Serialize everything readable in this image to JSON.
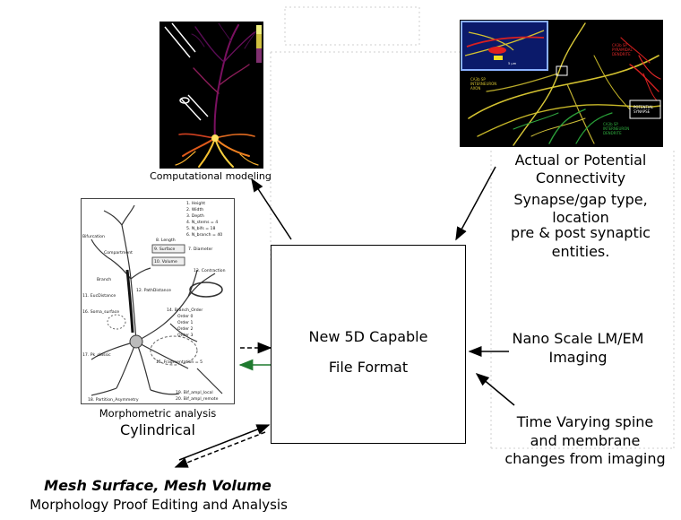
{
  "center_box": {
    "line1": "New 5D Capable",
    "line2": "File Format"
  },
  "comp_caption": "Computational modeling",
  "connectivity": {
    "title_line1": "Actual or Potential",
    "title_line2": "Connectivity",
    "sub_line1": "Synapse/gap type,",
    "sub_line2": "location",
    "sub_line3": "pre & post synaptic",
    "sub_line4": "entities.",
    "img_labels": [
      "CA3b SP",
      "INTERNEURON",
      "AXON",
      "CA3b SP",
      "PYRAMIDAL",
      "DENDRITE",
      "POTENTIAL",
      "SYNAPSE",
      "CA3b SP",
      "INTERNEURON",
      "DENDRITE",
      "5 µm"
    ]
  },
  "nano": {
    "line1": "Nano Scale LM/EM",
    "line2": "Imaging"
  },
  "time_varying": {
    "line1": "Time Varying spine",
    "line2": "and membrane",
    "line3": "changes from imaging"
  },
  "morpho": {
    "caption": "Morphometric analysis",
    "label": "Cylindrical",
    "legend": [
      "1. Height",
      "2. Width",
      "3. Depth",
      "4. N_stems  = 4",
      "5. N_bifs    = 18",
      "6. N_branch = 40"
    ],
    "labels": [
      "Bifurcation",
      "Compartment",
      "Branch",
      "8. Length",
      "9. Surface",
      "7. Diameter",
      "10. Volume",
      "11. EucDistance",
      "12. PathDistance",
      "13. Contraction",
      "16. Soma_surface",
      "14. Branch_Order",
      "Order 0",
      "Order 1",
      "Order 2",
      "Order 3",
      "17. Pk_classic",
      "15. Fragmentation = 5",
      "18. Partition_Asymmetry",
      "19. Bif_ampl_local",
      "20. Bif_ampl_remote"
    ]
  },
  "mesh": {
    "line1": "Mesh Surface, Mesh Volume",
    "line2": "Morphology Proof Editing and Analysis"
  }
}
